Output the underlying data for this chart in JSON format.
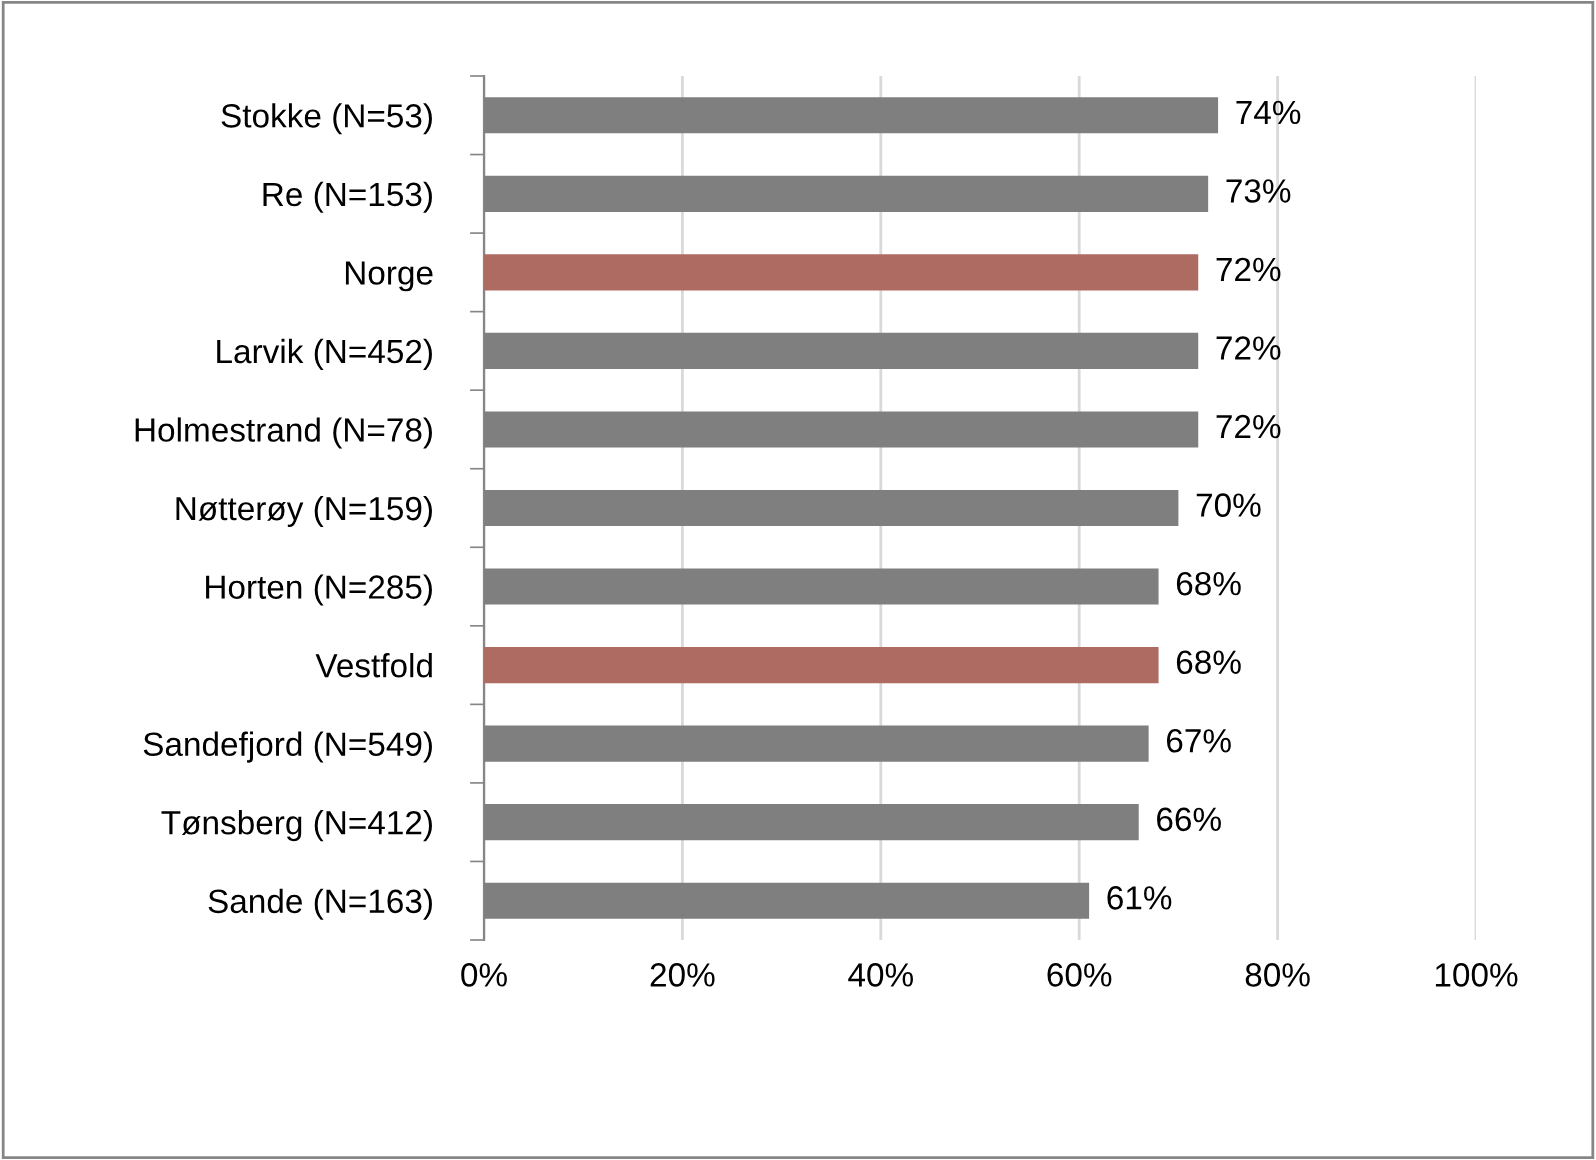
{
  "chart_data": {
    "type": "bar",
    "orientation": "horizontal",
    "categories": [
      "Stokke (N=53)",
      "Re (N=153)",
      "Norge",
      "Larvik (N=452)",
      "Holmestrand (N=78)",
      "Nøtterøy (N=159)",
      "Horten (N=285)",
      "Vestfold",
      "Sandefjord (N=549)",
      "Tønsberg (N=412)",
      "Sande (N=163)"
    ],
    "values": [
      74,
      73,
      72,
      72,
      72,
      70,
      68,
      68,
      67,
      66,
      61
    ],
    "colors": [
      "#7f7f7f",
      "#7f7f7f",
      "#ae6b61",
      "#7f7f7f",
      "#7f7f7f",
      "#7f7f7f",
      "#7f7f7f",
      "#ae6b61",
      "#7f7f7f",
      "#7f7f7f",
      "#7f7f7f"
    ],
    "value_labels": [
      "74%",
      "73%",
      "72%",
      "72%",
      "72%",
      "70%",
      "68%",
      "68%",
      "67%",
      "66%",
      "61%"
    ],
    "xlim": [
      0,
      100
    ],
    "xticks": [
      {
        "value": 0,
        "label": "0%"
      },
      {
        "value": 20,
        "label": "20%"
      },
      {
        "value": 40,
        "label": "40%"
      },
      {
        "value": 60,
        "label": "60%"
      },
      {
        "value": 80,
        "label": "80%"
      },
      {
        "value": 100,
        "label": "100%"
      }
    ],
    "grid": "x",
    "legend": false
  }
}
